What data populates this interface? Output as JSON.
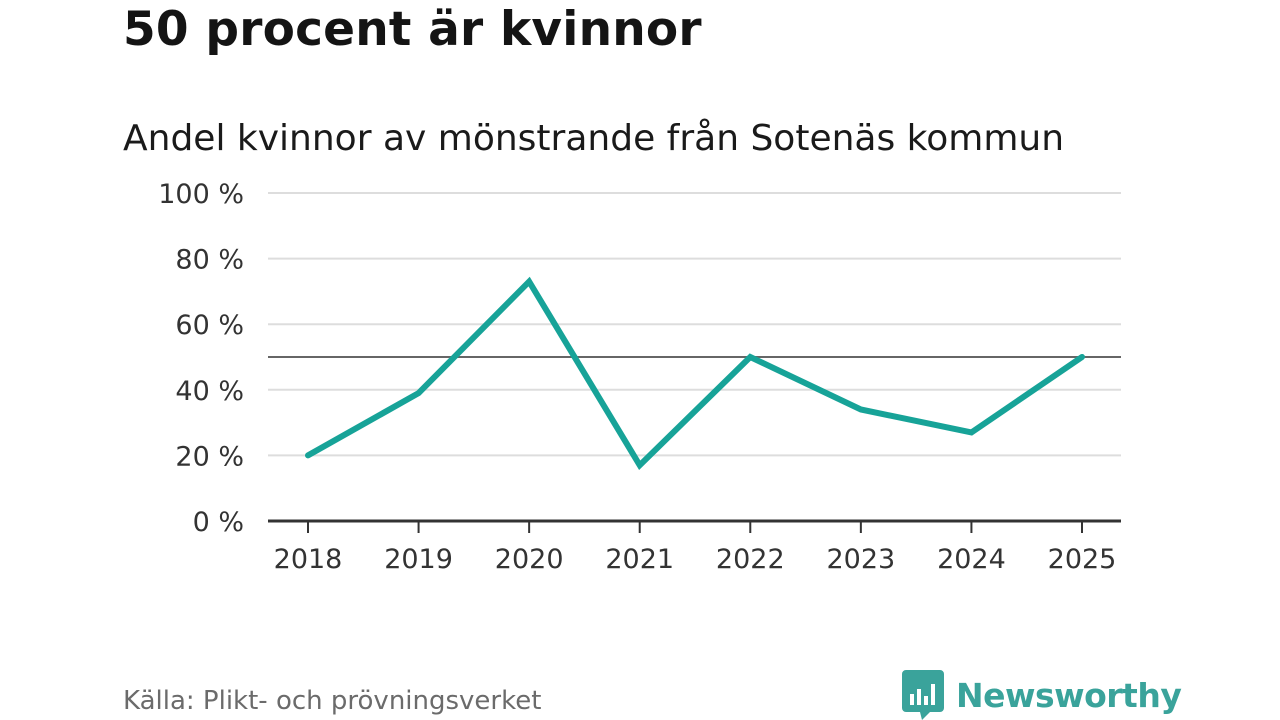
{
  "header": {
    "title": "50 procent är kvinnor",
    "subtitle": "Andel kvinnor av mönstrande från Sotenäs kommun"
  },
  "footer": {
    "source": "Källa: Plikt- och prövningsverket",
    "brand": "Newsworthy",
    "brand_icon": "newsworthy-logo-icon"
  },
  "colors": {
    "line": "#17a398",
    "reference_line": "#666666",
    "grid": "#dddddd",
    "axis": "#333333",
    "brand": "#3aa39b"
  },
  "chart_data": {
    "type": "line",
    "x": [
      "2018",
      "2019",
      "2020",
      "2021",
      "2022",
      "2023",
      "2024",
      "2025"
    ],
    "series": [
      {
        "values": [
          20,
          39,
          73,
          17,
          50,
          34,
          27,
          50
        ]
      }
    ],
    "reference_line": 50,
    "ylim": [
      0,
      100
    ],
    "yticks": [
      0,
      20,
      40,
      60,
      80,
      100
    ],
    "ytick_labels": [
      "0 %",
      "20 %",
      "40 %",
      "60 %",
      "80 %",
      "100 %"
    ],
    "xlabel": "",
    "ylabel": "",
    "grid": true,
    "legend": "none"
  }
}
